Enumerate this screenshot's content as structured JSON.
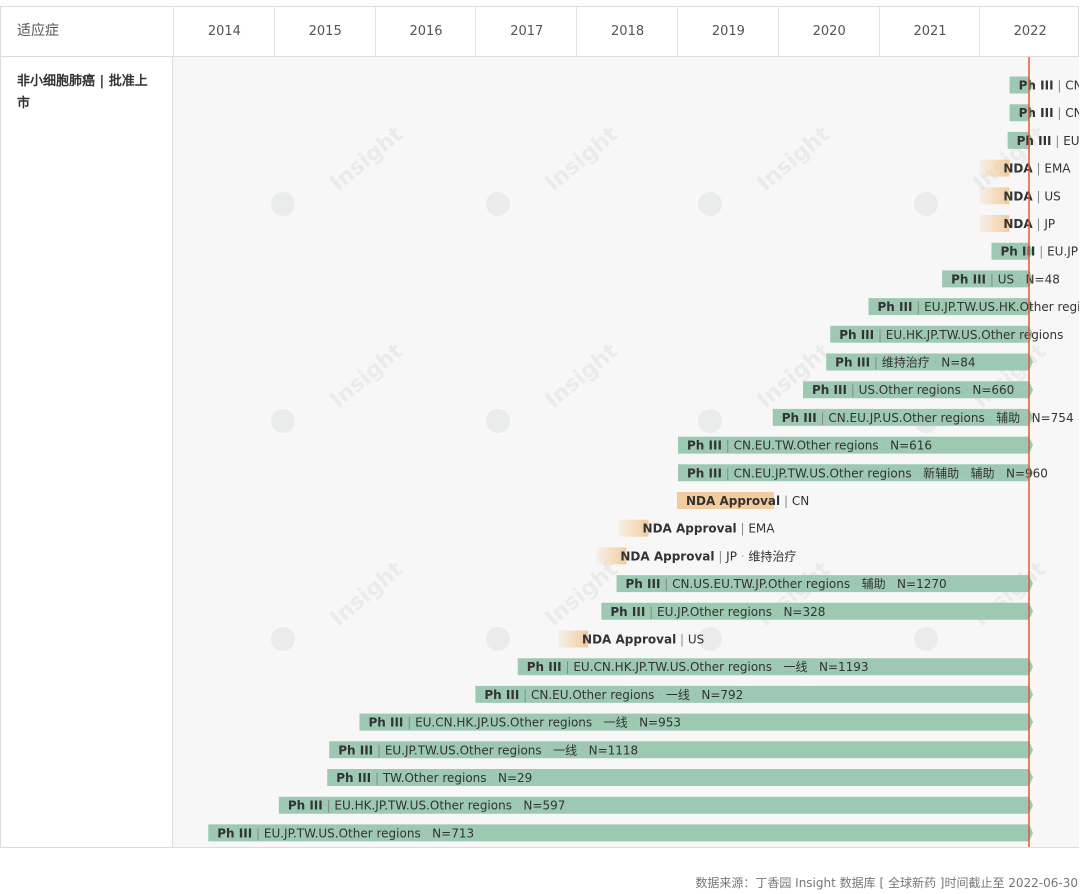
{
  "header": {
    "indication_col": "适应症",
    "years": [
      "2014",
      "2015",
      "2016",
      "2017",
      "2018",
      "2019",
      "2020",
      "2021",
      "2022"
    ]
  },
  "indication": "非小细胞肺癌 | 批准上市",
  "watermark": "Insight",
  "source_note": "数据来源：丁香园 Insight 数据库 [ 全球新药 ]时间截止至 2022-06-30",
  "colors": {
    "phase3": "#9dc9b3",
    "nda": "#f2cc9e",
    "today_line": "#e05a3a",
    "text": "#333333"
  },
  "chart_data": {
    "type": "timeline",
    "x_axis_years": [
      "2014",
      "2015",
      "2016",
      "2017",
      "2018",
      "2019",
      "2020",
      "2021",
      "2022"
    ],
    "cutoff_date": "2022-06-30",
    "rows": [
      {
        "start": 2022.3,
        "type": "phase3",
        "stage": "Ph III",
        "detail": "CN"
      },
      {
        "start": 2022.3,
        "type": "phase3",
        "stage": "Ph III",
        "detail": "CN"
      },
      {
        "start": 2022.28,
        "type": "phase3",
        "stage": "Ph III",
        "detail": "EU"
      },
      {
        "start": 2022.0,
        "type": "nda",
        "stage": "NDA",
        "detail": "EMA"
      },
      {
        "start": 2022.0,
        "type": "nda",
        "stage": "NDA",
        "detail": "US"
      },
      {
        "start": 2022.0,
        "type": "nda",
        "stage": "NDA",
        "detail": "JP"
      },
      {
        "start": 2022.12,
        "type": "phase3",
        "stage": "Ph III",
        "detail": "EU.JP"
      },
      {
        "start": 2021.63,
        "type": "phase3",
        "stage": "Ph III",
        "detail": "US",
        "n": "N=48"
      },
      {
        "start": 2020.9,
        "type": "phase3",
        "stage": "Ph III",
        "detail": "EU.JP.TW.US.HK.Other regions"
      },
      {
        "start": 2020.52,
        "type": "phase3",
        "stage": "Ph III",
        "detail": "EU.HK.JP.TW.US.Other regions"
      },
      {
        "start": 2020.48,
        "type": "phase3",
        "stage": "Ph III",
        "detail": "维持治疗",
        "n": "N=84"
      },
      {
        "start": 2020.25,
        "type": "phase3",
        "stage": "Ph III",
        "detail": "US.Other regions",
        "n": "N=660"
      },
      {
        "start": 2019.95,
        "type": "phase3",
        "stage": "Ph III",
        "detail": "CN.EU.JP.US.Other regions",
        "tag": "辅助",
        "n": "N=754"
      },
      {
        "start": 2019.01,
        "type": "phase3",
        "stage": "Ph III",
        "detail": "CN.EU.TW.Other regions",
        "n": "N=616"
      },
      {
        "start": 2019.01,
        "type": "phase3",
        "stage": "Ph III",
        "detail": "CN.EU.JP.TW.US.Other regions",
        "tag": "新辅助",
        "tag2": "辅助",
        "n": "N=960"
      },
      {
        "start": 2019.0,
        "type": "nda_approval",
        "stage": "NDA Approval",
        "detail": "CN"
      },
      {
        "start": 2018.42,
        "type": "nda",
        "stage": "NDA Approval",
        "detail": "EMA"
      },
      {
        "start": 2018.2,
        "type": "nda",
        "stage": "NDA Approval",
        "detail": "JP",
        "tag": "维持治疗"
      },
      {
        "start": 2018.4,
        "type": "phase3",
        "stage": "Ph III",
        "detail": "CN.US.EU.TW.JP.Other regions",
        "tag": "辅助",
        "n": "N=1270"
      },
      {
        "start": 2018.25,
        "type": "phase3",
        "stage": "Ph III",
        "detail": "EU.JP.Other regions",
        "n": "N=328"
      },
      {
        "start": 2017.82,
        "type": "nda",
        "stage": "NDA Approval",
        "detail": "US"
      },
      {
        "start": 2017.42,
        "type": "phase3",
        "stage": "Ph III",
        "detail": "EU.CN.HK.JP.TW.US.Other regions",
        "tag": "一线",
        "n": "N=1193"
      },
      {
        "start": 2017.0,
        "type": "phase3",
        "stage": "Ph III",
        "detail": "CN.EU.Other regions",
        "tag": "一线",
        "n": "N=792"
      },
      {
        "start": 2015.85,
        "type": "phase3",
        "stage": "Ph III",
        "detail": "EU.CN.HK.JP.US.Other regions",
        "tag": "一线",
        "n": "N=953"
      },
      {
        "start": 2015.55,
        "type": "phase3",
        "stage": "Ph III",
        "detail": "EU.JP.TW.US.Other regions",
        "tag": "一线",
        "n": "N=1118"
      },
      {
        "start": 2015.53,
        "type": "phase3",
        "stage": "Ph III",
        "detail": "TW.Other regions",
        "n": "N=29"
      },
      {
        "start": 2015.05,
        "type": "phase3",
        "stage": "Ph III",
        "detail": "EU.HK.JP.TW.US.Other regions",
        "n": "N=597"
      },
      {
        "start": 2014.35,
        "type": "phase3",
        "stage": "Ph III",
        "detail": "EU.JP.TW.US.Other regions",
        "n": "N=713"
      }
    ]
  }
}
